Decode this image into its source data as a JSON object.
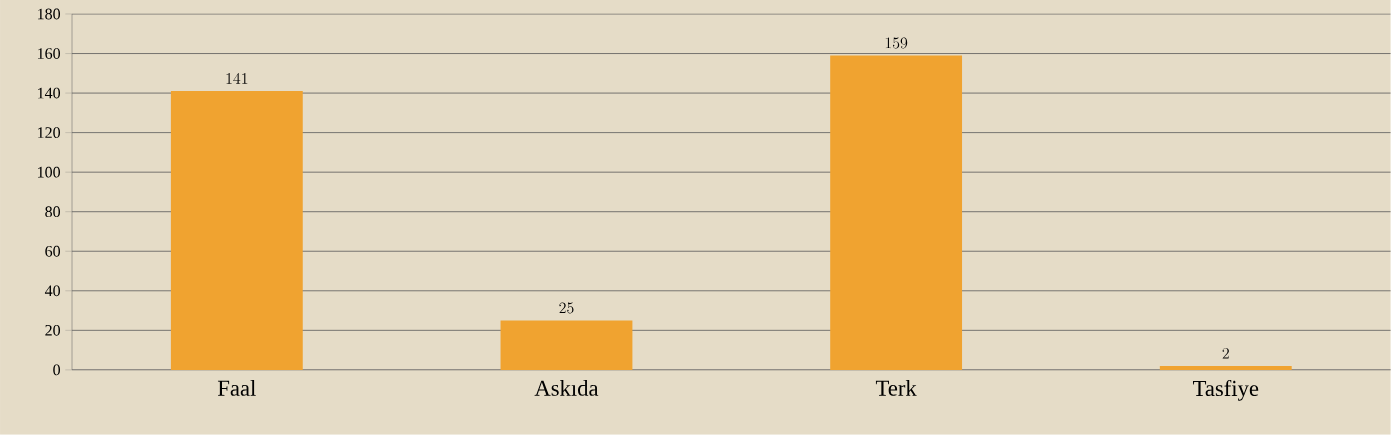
{
  "chart_data": {
    "type": "bar",
    "categories": [
      "Faal",
      "Askıda",
      "Terk",
      "Tasfiye"
    ],
    "values": [
      141,
      25,
      159,
      2
    ],
    "color": "#f0a330",
    "ylim": [
      0,
      180
    ],
    "yticks": [
      0,
      20,
      40,
      60,
      80,
      100,
      120,
      140,
      160,
      180
    ],
    "grid": "y",
    "data_labels": true
  }
}
